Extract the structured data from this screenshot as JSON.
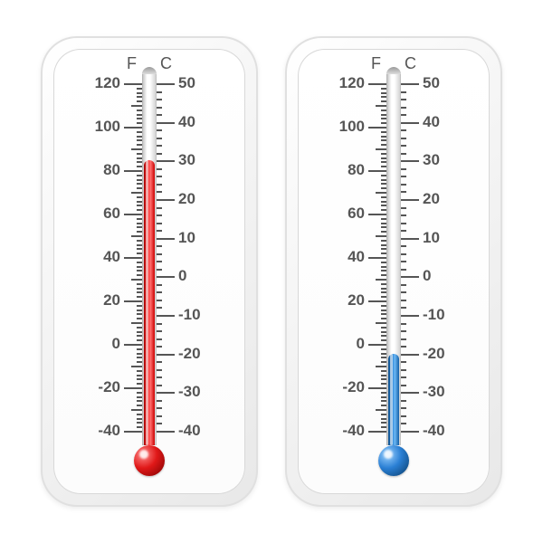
{
  "background_color": "#ffffff",
  "tick_color": "#555555",
  "label_color": "#555555",
  "label_fontsize": 17,
  "unit_fontsize": 18,
  "thermometers": [
    {
      "name": "thermometer-hot",
      "fluid_color": "#d81e1e",
      "fluid_gradient": "linear-gradient(90deg,#a00 0%,#ff3b3b 45%,#ff7070 60%,#c00 100%)",
      "bulb_gradient": "radial-gradient(circle at 30% 30%, #ff8a8a 0%, #e01818 45%, #7a0000 100%)",
      "fahrenheit_value": 86,
      "celsius_value": 30
    },
    {
      "name": "thermometer-cold",
      "fluid_color": "#2a7fd4",
      "fluid_gradient": "linear-gradient(90deg,#0b4d8a 0%,#3c93e0 45%,#6cb8f5 60%,#1560a8 100%)",
      "bulb_gradient": "radial-gradient(circle at 30% 30%, #9cd2ff 0%, #2a7fd4 45%, #083a66 100%)",
      "fahrenheit_value": -4,
      "celsius_value": -20
    }
  ],
  "units": {
    "left": "F",
    "right": "C"
  },
  "fahrenheit_scale": {
    "min": -40,
    "max": 120,
    "major_step": 20,
    "sub_ticks_per_major": 10,
    "mid_every": 5
  },
  "celsius_scale": {
    "min": -40,
    "max": 50,
    "major_step": 10,
    "sub_ticks_per_major": 5,
    "mid_every": 999
  }
}
